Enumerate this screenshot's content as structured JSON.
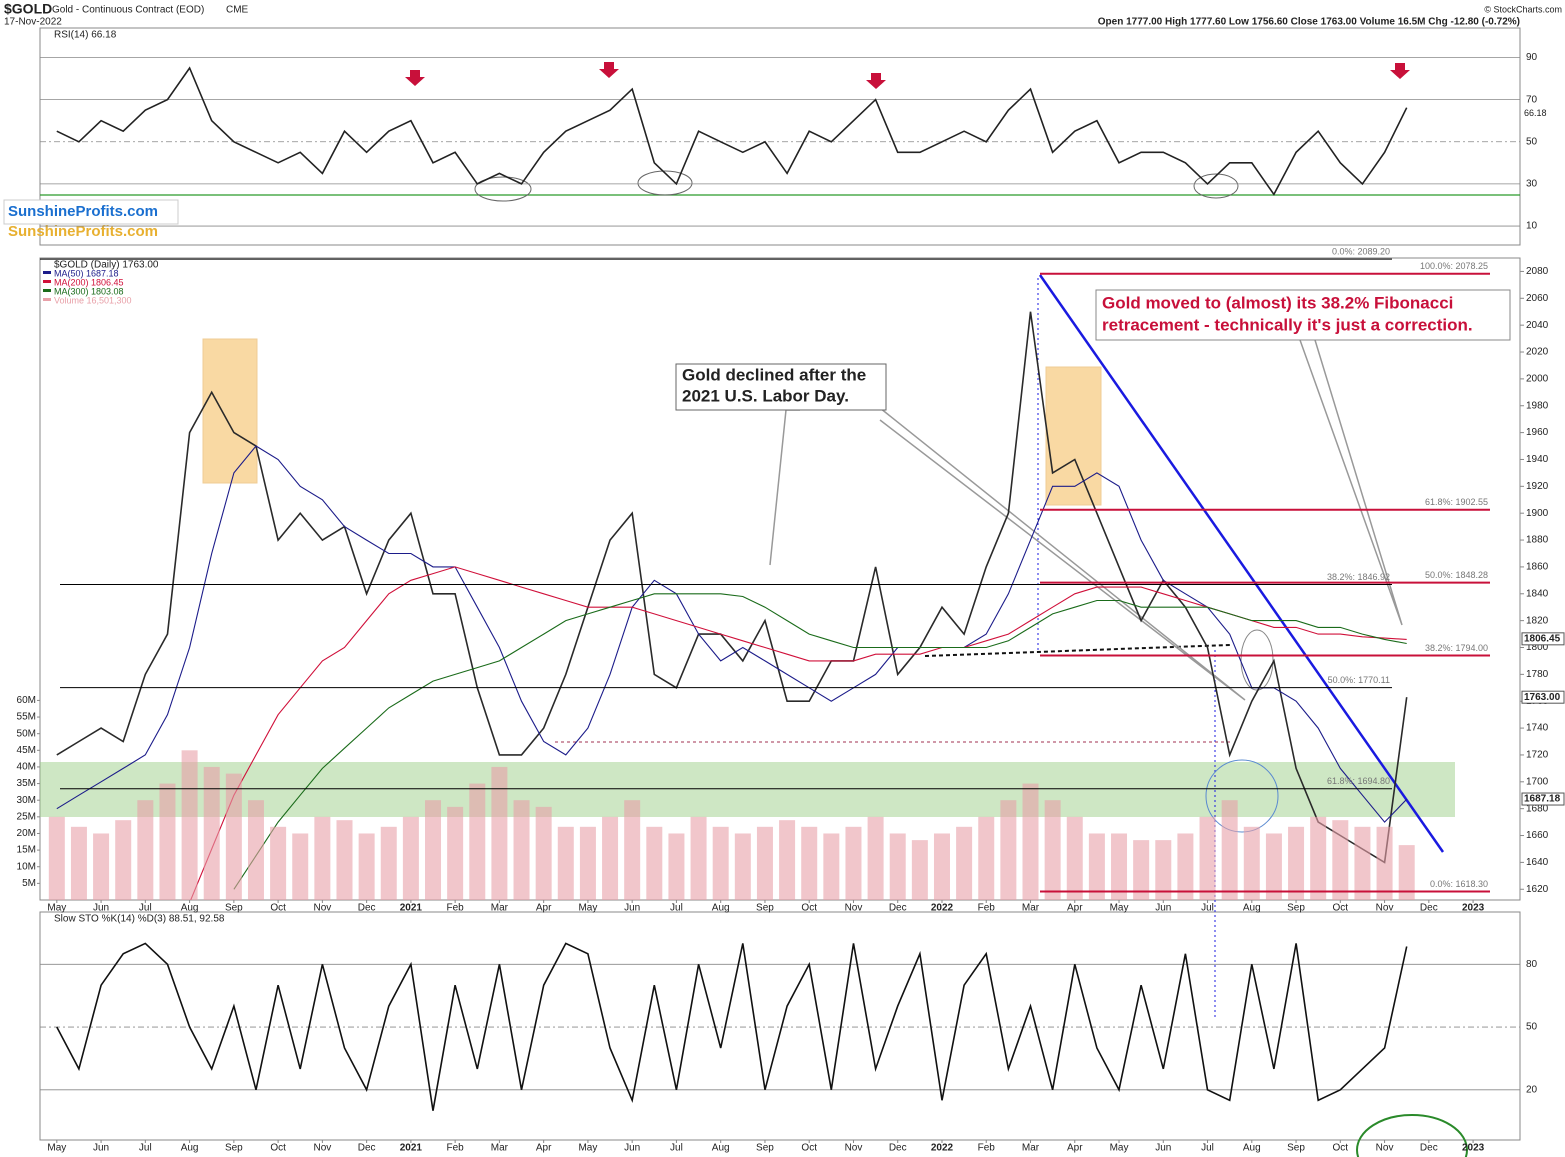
{
  "header": {
    "symbol": "$GOLD",
    "name": "Gold - Continuous Contract (EOD)",
    "exchange": "CME",
    "date": "17-Nov-2022",
    "quote": "Open 1777.00  High 1777.60  Low 1756.60  Close 1763.00  Volume 16.5M  Chg -12.80 (-0.72%)",
    "credit": "© StockCharts.com",
    "watermark": [
      "SunshineProfits.com",
      "SunshineProfits.com"
    ]
  },
  "chart_data": [
    {
      "type": "line",
      "title": "RSI(14) 66.18",
      "x": [
        0,
        0.5,
        1,
        1.5,
        2,
        2.5,
        3,
        3.5,
        4,
        4.5,
        5,
        5.5,
        6,
        6.5,
        7,
        7.5,
        8,
        8.5,
        9,
        9.5,
        10,
        10.5,
        11,
        11.5,
        12,
        12.5,
        13,
        13.5,
        14,
        14.5,
        15,
        15.5,
        16,
        16.5,
        17,
        17.5,
        18,
        18.5,
        19,
        19.5,
        20,
        20.5,
        21,
        21.5,
        22,
        22.5,
        23,
        23.5,
        24,
        24.5,
        25,
        25.5,
        26,
        26.5,
        27,
        27.5,
        28,
        28.5,
        29,
        29.5,
        30,
        30.5
      ],
      "series": [
        {
          "name": "RSI(14)",
          "color": "#222",
          "values": [
            55,
            50,
            60,
            55,
            65,
            70,
            85,
            60,
            50,
            45,
            40,
            45,
            35,
            55,
            45,
            55,
            60,
            40,
            45,
            30,
            35,
            30,
            45,
            55,
            60,
            65,
            75,
            40,
            30,
            55,
            50,
            45,
            50,
            35,
            55,
            50,
            60,
            70,
            45,
            45,
            50,
            55,
            50,
            65,
            75,
            45,
            55,
            60,
            40,
            45,
            45,
            40,
            30,
            40,
            40,
            25,
            45,
            55,
            40,
            30,
            45,
            66.18
          ]
        }
      ],
      "xlim": [
        -0.38,
        33.06
      ],
      "ylim": [
        1,
        104
      ],
      "yticks": [
        10,
        30,
        50,
        70,
        90
      ],
      "grid": true,
      "value_label": "66.18"
    },
    {
      "type": "line",
      "title": "$GOLD (Daily) 1763.00",
      "legend": [
        "MA(50) 1687.18",
        "MA(200) 1806.45",
        "MA(300) 1803.08",
        "Volume 16,501,300"
      ],
      "x": [
        0,
        0.5,
        1,
        1.5,
        2,
        2.5,
        3,
        3.5,
        4,
        4.5,
        5,
        5.5,
        6,
        6.5,
        7,
        7.5,
        8,
        8.5,
        9,
        9.5,
        10,
        10.5,
        11,
        11.5,
        12,
        12.5,
        13,
        13.5,
        14,
        14.5,
        15,
        15.5,
        16,
        16.5,
        17,
        17.5,
        18,
        18.5,
        19,
        19.5,
        20,
        20.5,
        21,
        21.5,
        22,
        22.5,
        23,
        23.5,
        24,
        24.5,
        25,
        25.5,
        26,
        26.5,
        27,
        27.5,
        28,
        28.5,
        29,
        29.5,
        30,
        30.5
      ],
      "series": [
        {
          "name": "$GOLD",
          "color": "#2a2a2a",
          "values": [
            1720,
            1730,
            1740,
            1730,
            1780,
            1810,
            1960,
            1990,
            1960,
            1950,
            1880,
            1900,
            1880,
            1890,
            1840,
            1880,
            1900,
            1840,
            1840,
            1770,
            1720,
            1720,
            1740,
            1780,
            1830,
            1880,
            1900,
            1780,
            1770,
            1810,
            1810,
            1790,
            1820,
            1760,
            1760,
            1790,
            1790,
            1860,
            1780,
            1800,
            1830,
            1810,
            1860,
            1900,
            2050,
            1930,
            1940,
            1900,
            1860,
            1820,
            1850,
            1830,
            1800,
            1720,
            1760,
            1790,
            1710,
            1670,
            1660,
            1650,
            1640,
            1763
          ]
        },
        {
          "name": "MA(50)",
          "color": "#1c1c8a",
          "values": [
            1680,
            1690,
            1700,
            1710,
            1720,
            1750,
            1800,
            1870,
            1930,
            1950,
            1940,
            1920,
            1910,
            1890,
            1880,
            1870,
            1870,
            1860,
            1860,
            1830,
            1800,
            1760,
            1730,
            1720,
            1740,
            1780,
            1830,
            1850,
            1840,
            1810,
            1790,
            1800,
            1790,
            1780,
            1770,
            1760,
            1770,
            1780,
            1800,
            1800,
            1800,
            1800,
            1810,
            1840,
            1880,
            1920,
            1920,
            1930,
            1920,
            1880,
            1850,
            1840,
            1830,
            1810,
            1770,
            1770,
            1760,
            1740,
            1710,
            1690,
            1670,
            1687
          ]
        },
        {
          "name": "MA(200)",
          "color": "#d0103a",
          "values": [
            null,
            null,
            null,
            null,
            null,
            null,
            1610,
            1650,
            1690,
            1720,
            1750,
            1770,
            1790,
            1800,
            1820,
            1840,
            1850,
            1855,
            1860,
            1855,
            1850,
            1845,
            1840,
            1835,
            1830,
            1830,
            1830,
            1825,
            1820,
            1815,
            1810,
            1805,
            1800,
            1795,
            1790,
            1790,
            1790,
            1795,
            1795,
            1795,
            1800,
            1800,
            1805,
            1810,
            1820,
            1830,
            1840,
            1845,
            1845,
            1845,
            1840,
            1835,
            1830,
            1825,
            1820,
            1815,
            1815,
            1810,
            1810,
            1808,
            1807,
            1806
          ]
        },
        {
          "name": "MA(300)",
          "color": "#1a6b1a",
          "values": [
            null,
            null,
            null,
            null,
            null,
            null,
            null,
            null,
            1620,
            1645,
            1670,
            1690,
            1710,
            1725,
            1740,
            1755,
            1765,
            1775,
            1780,
            1785,
            1790,
            1800,
            1810,
            1820,
            1825,
            1830,
            1835,
            1840,
            1840,
            1840,
            1840,
            1838,
            1830,
            1820,
            1810,
            1805,
            1800,
            1800,
            1800,
            1800,
            1800,
            1800,
            1800,
            1805,
            1815,
            1825,
            1830,
            1835,
            1835,
            1830,
            1830,
            1830,
            1830,
            1825,
            1820,
            1820,
            1820,
            1815,
            1815,
            1810,
            1806,
            1803
          ]
        },
        {
          "name": "Volume",
          "color": "#e8a0a8",
          "axis": "y2",
          "values": [
            25,
            22,
            20,
            24,
            30,
            35,
            45,
            40,
            38,
            30,
            22,
            20,
            25,
            24,
            20,
            22,
            25,
            30,
            28,
            35,
            40,
            30,
            28,
            22,
            22,
            25,
            30,
            22,
            20,
            25,
            22,
            20,
            22,
            24,
            22,
            20,
            22,
            25,
            20,
            18,
            20,
            22,
            25,
            30,
            35,
            30,
            25,
            20,
            20,
            18,
            18,
            20,
            25,
            30,
            22,
            20,
            22,
            25,
            24,
            22,
            22,
            16.5
          ]
        }
      ],
      "xlim": [
        -0.38,
        33.06
      ],
      "xticks": [
        {
          "value": 0,
          "label": "May"
        },
        {
          "value": 1,
          "label": "Jun"
        },
        {
          "value": 2,
          "label": "Jul"
        },
        {
          "value": 3,
          "label": "Aug"
        },
        {
          "value": 4,
          "label": "Sep"
        },
        {
          "value": 5,
          "label": "Oct"
        },
        {
          "value": 6,
          "label": "Nov"
        },
        {
          "value": 7,
          "label": "Dec"
        },
        {
          "value": 8,
          "label": "2021"
        },
        {
          "value": 9,
          "label": "Feb"
        },
        {
          "value": 10,
          "label": "Mar"
        },
        {
          "value": 11,
          "label": "Apr"
        },
        {
          "value": 12,
          "label": "May"
        },
        {
          "value": 13,
          "label": "Jun"
        },
        {
          "value": 14,
          "label": "Jul"
        },
        {
          "value": 15,
          "label": "Aug"
        },
        {
          "value": 16,
          "label": "Sep"
        },
        {
          "value": 17,
          "label": "Oct"
        },
        {
          "value": 18,
          "label": "Nov"
        },
        {
          "value": 19,
          "label": "Dec"
        },
        {
          "value": 20,
          "label": "2022"
        },
        {
          "value": 21,
          "label": "Feb"
        },
        {
          "value": 22,
          "label": "Mar"
        },
        {
          "value": 23,
          "label": "Apr"
        },
        {
          "value": 24,
          "label": "May"
        },
        {
          "value": 25,
          "label": "Jun"
        },
        {
          "value": 26,
          "label": "Jul"
        },
        {
          "value": 27,
          "label": "Aug"
        },
        {
          "value": 28,
          "label": "Sep"
        },
        {
          "value": 29,
          "label": "Oct"
        },
        {
          "value": 30,
          "label": "Nov"
        },
        {
          "value": 31,
          "label": "Dec"
        },
        {
          "value": 32,
          "label": "2023"
        }
      ],
      "ylim": [
        1612,
        2090
      ],
      "yticks": [
        1620,
        1640,
        1660,
        1680,
        1700,
        1720,
        1740,
        1760,
        1780,
        1800,
        1820,
        1840,
        1860,
        1880,
        1900,
        1920,
        1940,
        1960,
        1980,
        2000,
        2020,
        2040,
        2060,
        2080
      ],
      "y2lim": [
        0,
        193
      ],
      "y2ticks": [
        {
          "value": 5,
          "label": "5M"
        },
        {
          "value": 10,
          "label": "10M"
        },
        {
          "value": 15,
          "label": "15M"
        },
        {
          "value": 20,
          "label": "20M"
        },
        {
          "value": 25,
          "label": "25M"
        },
        {
          "value": 30,
          "label": "30M"
        },
        {
          "value": 35,
          "label": "35M"
        },
        {
          "value": 40,
          "label": "40M"
        },
        {
          "value": 45,
          "label": "45M"
        },
        {
          "value": 50,
          "label": "50M"
        },
        {
          "value": 55,
          "label": "55M"
        },
        {
          "value": 60,
          "label": "60M"
        }
      ],
      "levels": [
        {
          "label": "0.0%: 2089.20",
          "value": 2089.2,
          "color": "#000000"
        },
        {
          "label": "100.0%: 2078.25",
          "value": 2078.25,
          "color": "#c8103a"
        },
        {
          "label": "61.8%: 1902.55",
          "value": 1902.55,
          "color": "#c8103a"
        },
        {
          "label": "50.0%: 1848.28",
          "value": 1848.28,
          "color": "#c8103a"
        },
        {
          "label": "38.2%: 1846.92",
          "value": 1846.92,
          "color": "#000000"
        },
        {
          "label": "38.2%: 1794.00",
          "value": 1794.0,
          "color": "#c8103a"
        },
        {
          "label": "50.0%: 1770.11",
          "value": 1770.11,
          "color": "#000000"
        },
        {
          "label": "61.8%: 1694.80",
          "value": 1694.8,
          "color": "#000000"
        },
        {
          "label": "0.0%: 1618.30",
          "value": 1618.3,
          "color": "#c8103a"
        }
      ],
      "price_labels": [
        {
          "value": 1806.45,
          "label": "1806.45"
        },
        {
          "value": 1763.0,
          "label": "1763.00"
        },
        {
          "value": 1687.18,
          "label": "1687.18"
        }
      ],
      "annotations": [
        [
          "Gold declined after the",
          "2021 U.S. Labor Day."
        ],
        [
          "Gold moved to (almost) its 38.2% Fibonacci",
          "retracement - technically it's just a correction."
        ]
      ]
    },
    {
      "type": "line",
      "title": "Slow STO %K(14) %D(3) 88.51, 92.58",
      "x": [
        0,
        0.5,
        1,
        1.5,
        2,
        2.5,
        3,
        3.5,
        4,
        4.5,
        5,
        5.5,
        6,
        6.5,
        7,
        7.5,
        8,
        8.5,
        9,
        9.5,
        10,
        10.5,
        11,
        11.5,
        12,
        12.5,
        13,
        13.5,
        14,
        14.5,
        15,
        15.5,
        16,
        16.5,
        17,
        17.5,
        18,
        18.5,
        19,
        19.5,
        20,
        20.5,
        21,
        21.5,
        22,
        22.5,
        23,
        23.5,
        24,
        24.5,
        25,
        25.5,
        26,
        26.5,
        27,
        27.5,
        28,
        28.5,
        29,
        29.5,
        30,
        30.5
      ],
      "series": [
        {
          "name": "%K(14)",
          "color": "#111",
          "values": [
            50,
            30,
            70,
            85,
            90,
            80,
            50,
            30,
            60,
            20,
            70,
            30,
            80,
            40,
            20,
            60,
            80,
            10,
            70,
            30,
            80,
            20,
            70,
            90,
            85,
            40,
            15,
            70,
            20,
            80,
            40,
            90,
            20,
            60,
            80,
            20,
            90,
            30,
            60,
            85,
            15,
            70,
            85,
            30,
            60,
            20,
            80,
            40,
            20,
            70,
            30,
            85,
            20,
            15,
            80,
            30,
            90,
            15,
            20,
            30,
            40,
            88.51
          ]
        }
      ],
      "xlim": [
        -0.38,
        33.06
      ],
      "ylim": [
        -4,
        105
      ],
      "yticks": [
        20,
        50,
        80
      ],
      "grid": true
    }
  ]
}
